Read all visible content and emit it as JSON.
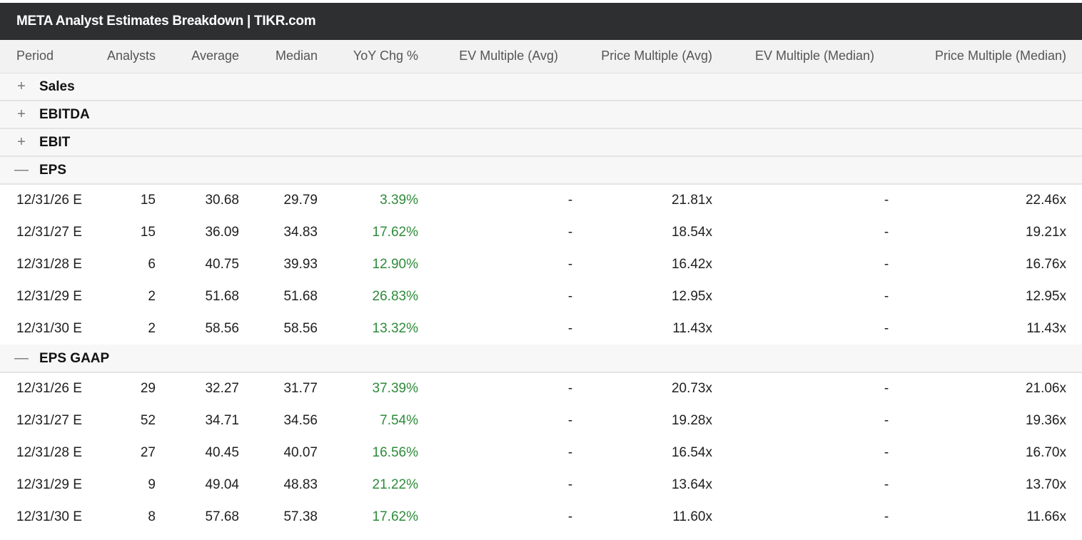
{
  "title": "META Analyst Estimates Breakdown | TIKR.com",
  "columns": {
    "period": "Period",
    "analysts": "Analysts",
    "average": "Average",
    "median": "Median",
    "yoy": "YoY Chg %",
    "ev_avg": "EV Multiple (Avg)",
    "price_avg": "Price Multiple (Avg)",
    "ev_median": "EV Multiple (Median)",
    "price_median": "Price Multiple (Median)"
  },
  "colors": {
    "title_bg": "#2e2f31",
    "header_bg": "#f2f2f2",
    "positive": "#2e8b3a"
  },
  "sections": [
    {
      "label": "Sales",
      "icon": "plus-icon",
      "glyph": "+",
      "expanded": false
    },
    {
      "label": "EBITDA",
      "icon": "plus-icon",
      "glyph": "+",
      "expanded": false
    },
    {
      "label": "EBIT",
      "icon": "plus-icon",
      "glyph": "+",
      "expanded": false
    },
    {
      "label": "EPS",
      "icon": "minus-icon",
      "glyph": "—",
      "expanded": true,
      "rows": [
        {
          "period": "12/31/26 E",
          "analysts": "15",
          "average": "30.68",
          "median": "29.79",
          "yoy": "3.39%",
          "ev_avg": "-",
          "price_avg": "21.81x",
          "ev_median": "-",
          "price_median": "22.46x"
        },
        {
          "period": "12/31/27 E",
          "analysts": "15",
          "average": "36.09",
          "median": "34.83",
          "yoy": "17.62%",
          "ev_avg": "-",
          "price_avg": "18.54x",
          "ev_median": "-",
          "price_median": "19.21x"
        },
        {
          "period": "12/31/28 E",
          "analysts": "6",
          "average": "40.75",
          "median": "39.93",
          "yoy": "12.90%",
          "ev_avg": "-",
          "price_avg": "16.42x",
          "ev_median": "-",
          "price_median": "16.76x"
        },
        {
          "period": "12/31/29 E",
          "analysts": "2",
          "average": "51.68",
          "median": "51.68",
          "yoy": "26.83%",
          "ev_avg": "-",
          "price_avg": "12.95x",
          "ev_median": "-",
          "price_median": "12.95x"
        },
        {
          "period": "12/31/30 E",
          "analysts": "2",
          "average": "58.56",
          "median": "58.56",
          "yoy": "13.32%",
          "ev_avg": "-",
          "price_avg": "11.43x",
          "ev_median": "-",
          "price_median": "11.43x"
        }
      ]
    },
    {
      "label": "EPS GAAP",
      "icon": "minus-icon",
      "glyph": "—",
      "expanded": true,
      "rows": [
        {
          "period": "12/31/26 E",
          "analysts": "29",
          "average": "32.27",
          "median": "31.77",
          "yoy": "37.39%",
          "ev_avg": "-",
          "price_avg": "20.73x",
          "ev_median": "-",
          "price_median": "21.06x"
        },
        {
          "period": "12/31/27 E",
          "analysts": "52",
          "average": "34.71",
          "median": "34.56",
          "yoy": "7.54%",
          "ev_avg": "-",
          "price_avg": "19.28x",
          "ev_median": "-",
          "price_median": "19.36x"
        },
        {
          "period": "12/31/28 E",
          "analysts": "27",
          "average": "40.45",
          "median": "40.07",
          "yoy": "16.56%",
          "ev_avg": "-",
          "price_avg": "16.54x",
          "ev_median": "-",
          "price_median": "16.70x"
        },
        {
          "period": "12/31/29 E",
          "analysts": "9",
          "average": "49.04",
          "median": "48.83",
          "yoy": "21.22%",
          "ev_avg": "-",
          "price_avg": "13.64x",
          "ev_median": "-",
          "price_median": "13.70x"
        },
        {
          "period": "12/31/30 E",
          "analysts": "8",
          "average": "57.68",
          "median": "57.38",
          "yoy": "17.62%",
          "ev_avg": "-",
          "price_avg": "11.60x",
          "ev_median": "-",
          "price_median": "11.66x"
        }
      ]
    }
  ]
}
